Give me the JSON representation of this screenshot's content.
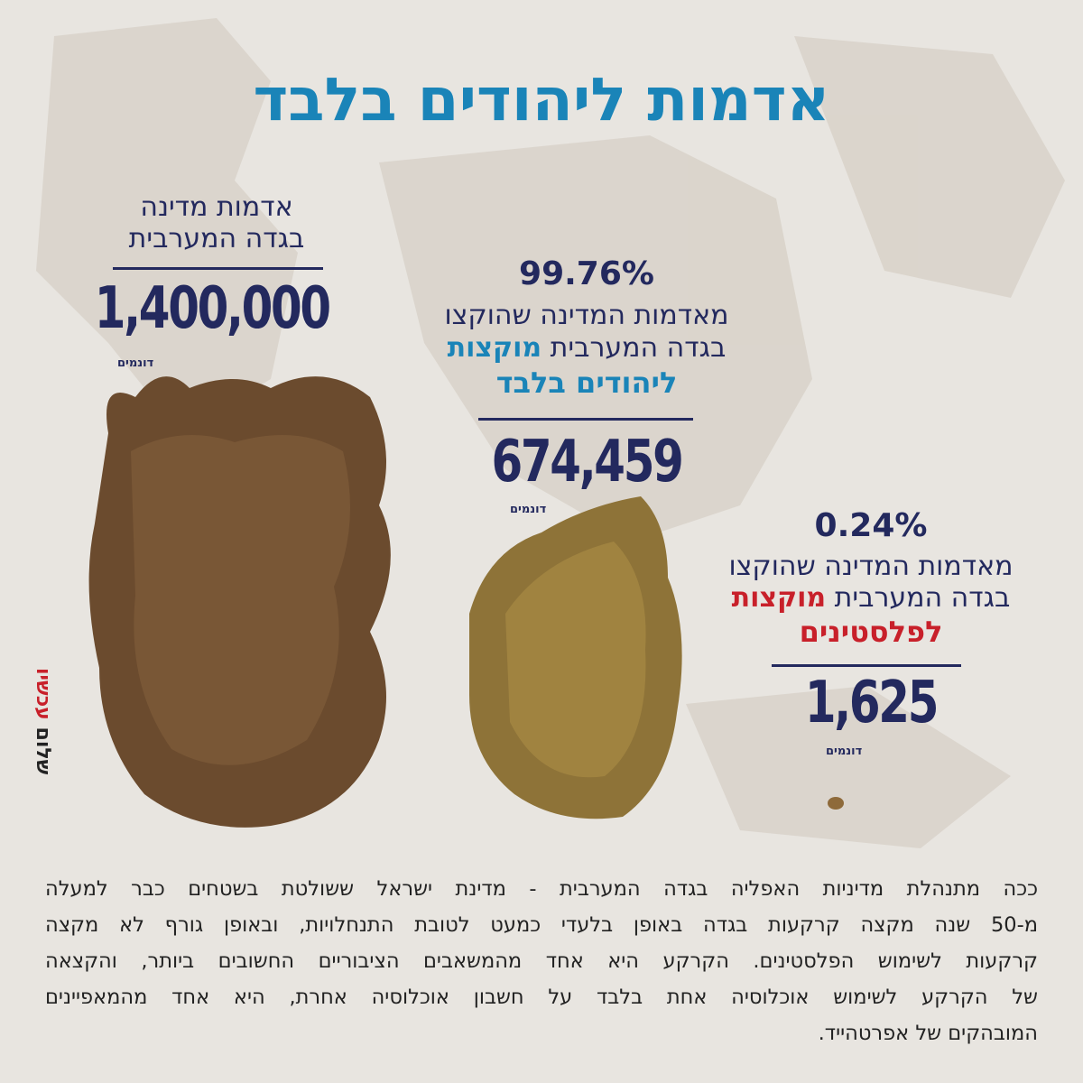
{
  "title": "אדמות ליהודים בלבד",
  "state_land": {
    "lines": [
      "אדמות מדינה",
      "בגדה המערבית"
    ],
    "amount": "1,400,000",
    "unit": "דונמים"
  },
  "jews": {
    "percent": "99.76%",
    "line1": "מאדמות המדינה שהוקצו",
    "line2": "בגדה המערבית",
    "highlight1": "מוקצות",
    "highlight2": "ליהודים בלבד",
    "amount": "674,459",
    "unit": "דונמים"
  },
  "palestinians": {
    "percent": "0.24%",
    "line1": "מאדמות המדינה שהוקצו",
    "line2": "בגדה המערבית",
    "highlight1": "מוקצות",
    "highlight2": "לפלסטינים",
    "amount": "1,625",
    "unit": "דונמים"
  },
  "logo": {
    "word1": "שלום",
    "word2": "עכשיו"
  },
  "body": [
    "ככה מתנהלת מדיניות האפליה בגדה המערבית - מדינת ישראל ששולטת בשטחים כבר למעלה",
    "מ-50 שנה מקצה קרקעות בגדה באופן בלעדי כמעט לטובת התנחלויות, ובאופן גורף לא מקצה",
    "קרקעות לשימוש הפלסטינים. הקרקע היא אחד מהמשאבים הציבוריים החשובים ביותר, והקצאה",
    "של הקרקע לשימוש אוכלוסיה אחת בלבד על חשבון אוכלוסיה אחרת, היא אחד מהמאפיינים",
    "המובהקים של אפרטהייד."
  ]
}
